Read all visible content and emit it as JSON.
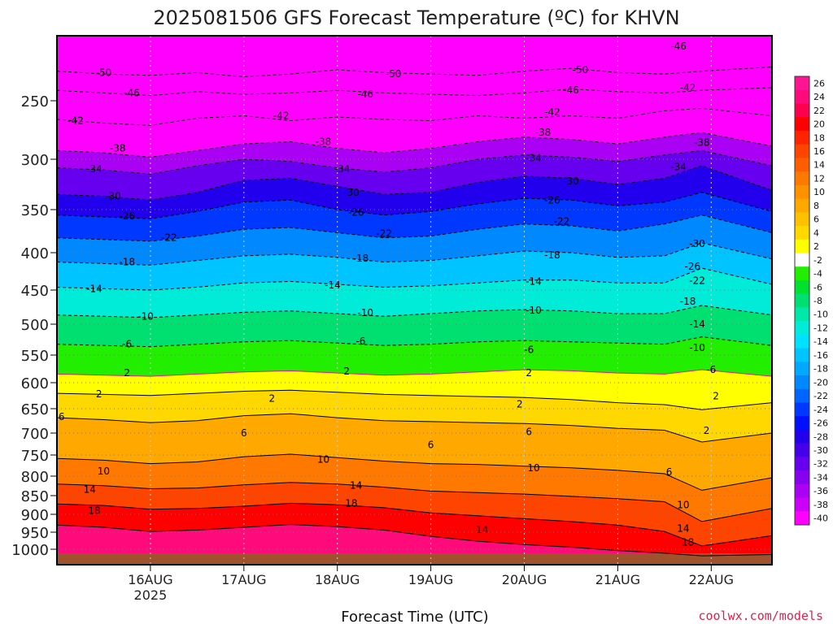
{
  "chart_data": {
    "type": "heatmap",
    "title": "2025081506 GFS Forecast Temperature (ºC) for KHVN",
    "xlabel": "Forecast Time (UTC)",
    "ylabel": "",
    "x_ticks": [
      {
        "label": "16AUG",
        "sublabel": "2025",
        "day": 1.0
      },
      {
        "label": "17AUG",
        "sublabel": "",
        "day": 2.0
      },
      {
        "label": "18AUG",
        "sublabel": "",
        "day": 3.0
      },
      {
        "label": "19AUG",
        "sublabel": "",
        "day": 4.0
      },
      {
        "label": "20AUG",
        "sublabel": "",
        "day": 5.0
      },
      {
        "label": "21AUG",
        "sublabel": "",
        "day": 6.0
      },
      {
        "label": "22AUG",
        "sublabel": "",
        "day": 7.0
      }
    ],
    "x_range_days": [
      0.0,
      7.65
    ],
    "y_ticks": [
      250,
      300,
      350,
      400,
      450,
      500,
      550,
      600,
      650,
      700,
      750,
      800,
      850,
      900,
      950,
      1000
    ],
    "y_range_hpa": [
      1022,
      200
    ],
    "grid": true,
    "colorbar": {
      "labels": [
        "26",
        "24",
        "22",
        "20",
        "18",
        "16",
        "14",
        "12",
        "10",
        "8",
        "6",
        "4",
        "2",
        "-2",
        "-4",
        "-6",
        "-8",
        "-10",
        "-12",
        "-14",
        "-16",
        "-18",
        "-20",
        "-22",
        "-24",
        "-26",
        "-28",
        "-30",
        "-32",
        "-34",
        "-36",
        "-38",
        "-40"
      ],
      "colors": [
        "#ff1493",
        "#ff0a7a",
        "#ff0050",
        "#ff0000",
        "#ff2400",
        "#ff4400",
        "#ff5e00",
        "#ff7800",
        "#ff9000",
        "#ffa800",
        "#ffc000",
        "#ffd800",
        "#ffff00",
        "#ffffff",
        "#22ee00",
        "#00e030",
        "#00e070",
        "#00e8a8",
        "#00ecd8",
        "#00e0ff",
        "#00c4ff",
        "#00a8ff",
        "#0088ff",
        "#0064ff",
        "#0038ff",
        "#0010ff",
        "#2200ee",
        "#4400e8",
        "#6600ee",
        "#8800f0",
        "#aa00f4",
        "#cc00f8",
        "#ff00ff"
      ]
    },
    "isotherms": [
      {
        "value": -50,
        "p": [
          228,
          230,
          231,
          229,
          232,
          230,
          227,
          229,
          230,
          231,
          228,
          226,
          229,
          230,
          228,
          225
        ]
      },
      {
        "value": -46,
        "p": [
          242,
          244,
          246,
          243,
          245,
          244,
          242,
          244,
          245,
          246,
          244,
          241,
          243,
          244,
          242,
          240
        ]
      },
      {
        "value": -42,
        "p": [
          265,
          268,
          270,
          264,
          262,
          266,
          263,
          265,
          266,
          262,
          264,
          262,
          264,
          258,
          256,
          262
        ]
      },
      {
        "value": -38,
        "p": [
          292,
          294,
          298,
          292,
          286,
          284,
          290,
          294,
          290,
          284,
          280,
          282,
          286,
          280,
          276,
          288
        ]
      },
      {
        "value": -34,
        "p": [
          308,
          310,
          314,
          306,
          300,
          302,
          308,
          312,
          308,
          300,
          296,
          298,
          302,
          296,
          292,
          306
        ]
      },
      {
        "value": -30,
        "p": [
          334,
          336,
          340,
          332,
          320,
          318,
          326,
          334,
          332,
          322,
          316,
          318,
          324,
          318,
          306,
          330
        ]
      },
      {
        "value": -26,
        "p": [
          356,
          358,
          360,
          352,
          342,
          340,
          350,
          356,
          352,
          344,
          338,
          340,
          346,
          342,
          332,
          352
        ]
      },
      {
        "value": -22,
        "p": [
          382,
          384,
          386,
          380,
          372,
          370,
          376,
          382,
          380,
          372,
          366,
          368,
          374,
          366,
          356,
          376
        ]
      },
      {
        "value": -18,
        "p": [
          412,
          414,
          416,
          410,
          404,
          402,
          406,
          412,
          410,
          404,
          398,
          400,
          406,
          404,
          388,
          408
        ]
      },
      {
        "value": -14,
        "p": [
          446,
          448,
          450,
          446,
          440,
          438,
          442,
          446,
          444,
          440,
          436,
          436,
          440,
          440,
          420,
          442
        ]
      },
      {
        "value": -10,
        "p": [
          486,
          488,
          490,
          486,
          482,
          480,
          484,
          488,
          484,
          480,
          478,
          480,
          484,
          484,
          472,
          486
        ]
      },
      {
        "value": -6,
        "p": [
          532,
          534,
          536,
          532,
          528,
          526,
          530,
          534,
          532,
          528,
          526,
          528,
          530,
          532,
          520,
          534
        ]
      },
      {
        "value": -2,
        "p": [
          584,
          586,
          588,
          584,
          580,
          578,
          582,
          586,
          584,
          580,
          576,
          578,
          582,
          584,
          576,
          588
        ]
      },
      {
        "value": 2,
        "p": [
          620,
          622,
          624,
          620,
          616,
          614,
          618,
          622,
          624,
          626,
          628,
          632,
          638,
          642,
          652,
          638
        ]
      },
      {
        "value": 6,
        "p": [
          668,
          672,
          678,
          674,
          664,
          660,
          668,
          674,
          676,
          678,
          680,
          684,
          690,
          694,
          720,
          700
        ]
      },
      {
        "value": 10,
        "p": [
          758,
          762,
          770,
          766,
          754,
          748,
          756,
          764,
          770,
          772,
          776,
          780,
          786,
          794,
          836,
          804
        ]
      },
      {
        "value": 14,
        "p": [
          820,
          824,
          832,
          830,
          822,
          816,
          820,
          828,
          838,
          842,
          846,
          852,
          858,
          866,
          920,
          884
        ]
      },
      {
        "value": 18,
        "p": [
          872,
          876,
          886,
          884,
          878,
          870,
          874,
          882,
          896,
          904,
          912,
          920,
          930,
          948,
          990,
          960
        ]
      },
      {
        "value": 22,
        "p": [
          930,
          936,
          948,
          944,
          936,
          928,
          934,
          944,
          962,
          976,
          986,
          994,
          1004,
          1012,
          1020,
          1016
        ]
      }
    ],
    "isotherm_days": [
      0.0,
      0.5,
      1.0,
      1.5,
      2.0,
      2.5,
      3.0,
      3.5,
      4.0,
      4.5,
      5.0,
      5.5,
      6.0,
      6.5,
      6.9,
      7.65
    ],
    "contour_labels": [
      {
        "text": "-50",
        "day": 0.5,
        "p": 229
      },
      {
        "text": "-50",
        "day": 3.6,
        "p": 230
      },
      {
        "text": "-50",
        "day": 5.6,
        "p": 227
      },
      {
        "text": "-46",
        "day": 6.65,
        "p": 211
      },
      {
        "text": "-46",
        "day": 0.8,
        "p": 244
      },
      {
        "text": "-46",
        "day": 3.3,
        "p": 245
      },
      {
        "text": "-46",
        "day": 5.5,
        "p": 242
      },
      {
        "text": "-42",
        "day": 0.2,
        "p": 266
      },
      {
        "text": "-42",
        "day": 2.4,
        "p": 262
      },
      {
        "text": "-42",
        "day": 5.3,
        "p": 259
      },
      {
        "text": "-42",
        "day": 6.75,
        "p": 240
      },
      {
        "text": "-38",
        "day": 0.65,
        "p": 290
      },
      {
        "text": "-38",
        "day": 2.85,
        "p": 284
      },
      {
        "text": "-38",
        "day": 5.2,
        "p": 276
      },
      {
        "text": "-38",
        "day": 6.9,
        "p": 285
      },
      {
        "text": "-34",
        "day": 0.4,
        "p": 309
      },
      {
        "text": "-34",
        "day": 3.05,
        "p": 309
      },
      {
        "text": "-34",
        "day": 5.1,
        "p": 299
      },
      {
        "text": "-34",
        "day": 6.65,
        "p": 307
      },
      {
        "text": "-30",
        "day": 0.6,
        "p": 336
      },
      {
        "text": "-30",
        "day": 3.15,
        "p": 332
      },
      {
        "text": "-30",
        "day": 5.5,
        "p": 321
      },
      {
        "text": "-30",
        "day": 6.85,
        "p": 389
      },
      {
        "text": "-26",
        "day": 0.75,
        "p": 357
      },
      {
        "text": "-26",
        "day": 3.2,
        "p": 353
      },
      {
        "text": "-26",
        "day": 5.3,
        "p": 340
      },
      {
        "text": "-26",
        "day": 6.8,
        "p": 418
      },
      {
        "text": "-22",
        "day": 1.2,
        "p": 382
      },
      {
        "text": "-22",
        "day": 3.5,
        "p": 377
      },
      {
        "text": "-22",
        "day": 5.4,
        "p": 363
      },
      {
        "text": "-22",
        "day": 6.85,
        "p": 437
      },
      {
        "text": "-18",
        "day": 0.75,
        "p": 412
      },
      {
        "text": "-18",
        "day": 3.25,
        "p": 407
      },
      {
        "text": "-18",
        "day": 5.3,
        "p": 403
      },
      {
        "text": "-18",
        "day": 6.75,
        "p": 466
      },
      {
        "text": "-14",
        "day": 0.4,
        "p": 448
      },
      {
        "text": "-14",
        "day": 2.95,
        "p": 443
      },
      {
        "text": "-14",
        "day": 5.1,
        "p": 438
      },
      {
        "text": "-14",
        "day": 6.85,
        "p": 500
      },
      {
        "text": "-10",
        "day": 0.95,
        "p": 488
      },
      {
        "text": "-10",
        "day": 3.3,
        "p": 483
      },
      {
        "text": "-10",
        "day": 5.1,
        "p": 479
      },
      {
        "text": "-10",
        "day": 6.85,
        "p": 538
      },
      {
        "text": "-6",
        "day": 0.75,
        "p": 532
      },
      {
        "text": "-6",
        "day": 3.25,
        "p": 527
      },
      {
        "text": "-6",
        "day": 5.05,
        "p": 541
      },
      {
        "text": "-6",
        "day": 7.0,
        "p": 576
      },
      {
        "text": "2",
        "day": 0.75,
        "p": 582
      },
      {
        "text": "2",
        "day": 3.1,
        "p": 579
      },
      {
        "text": "2",
        "day": 5.05,
        "p": 582
      },
      {
        "text": "2",
        "day": 7.05,
        "p": 625
      },
      {
        "text": "2",
        "day": 0.45,
        "p": 621
      },
      {
        "text": "2",
        "day": 2.3,
        "p": 630
      },
      {
        "text": "2",
        "day": 4.95,
        "p": 641
      },
      {
        "text": "2",
        "day": 6.95,
        "p": 695
      },
      {
        "text": "6",
        "day": 0.05,
        "p": 666
      },
      {
        "text": "6",
        "day": 2.0,
        "p": 700
      },
      {
        "text": "6",
        "day": 4.0,
        "p": 726
      },
      {
        "text": "6",
        "day": 5.05,
        "p": 697
      },
      {
        "text": "6",
        "day": 6.55,
        "p": 790
      },
      {
        "text": "10",
        "day": 0.5,
        "p": 788
      },
      {
        "text": "10",
        "day": 2.85,
        "p": 760
      },
      {
        "text": "10",
        "day": 5.1,
        "p": 780
      },
      {
        "text": "10",
        "day": 6.7,
        "p": 875
      },
      {
        "text": "14",
        "day": 0.35,
        "p": 834
      },
      {
        "text": "14",
        "day": 3.2,
        "p": 824
      },
      {
        "text": "14",
        "day": 4.55,
        "p": 943
      },
      {
        "text": "14",
        "day": 6.7,
        "p": 940
      },
      {
        "text": "18",
        "day": 0.4,
        "p": 890
      },
      {
        "text": "18",
        "day": 3.15,
        "p": 870
      },
      {
        "text": "18",
        "day": 6.75,
        "p": 980
      }
    ]
  },
  "credit": "coolwx.com/models"
}
